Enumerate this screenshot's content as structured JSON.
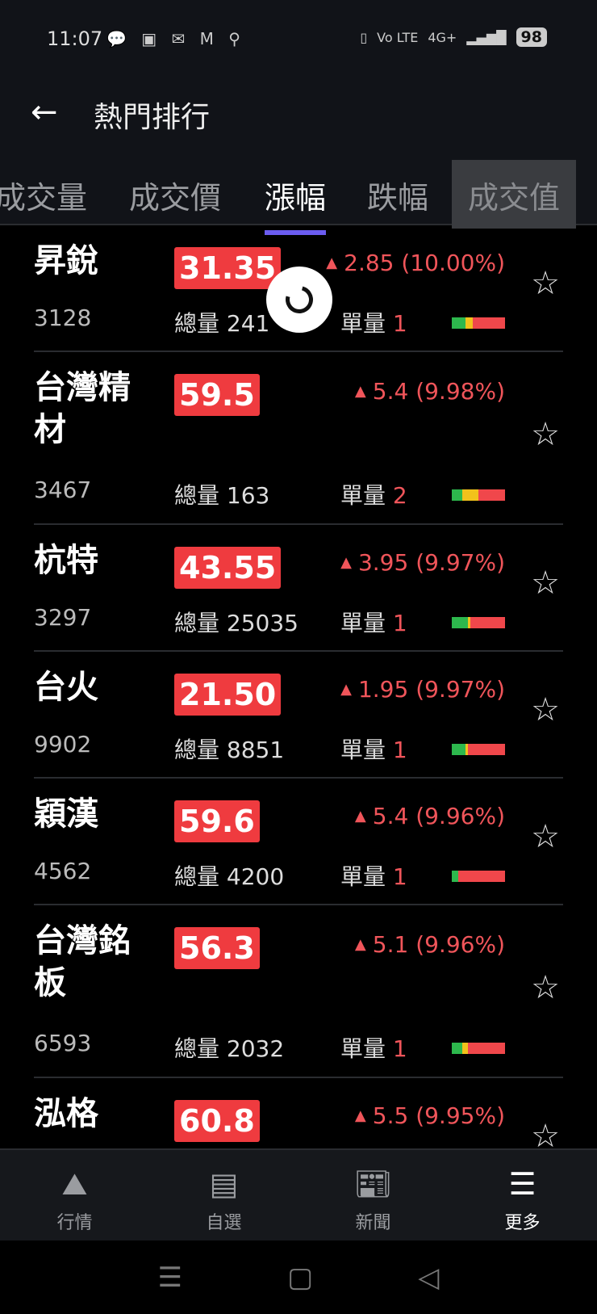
{
  "status": {
    "time": "11:07",
    "icons": [
      "line-icon",
      "app-icon",
      "mail-icon",
      "gmail-icon",
      "keyhole-icon"
    ],
    "network": "4G+",
    "volte": "Vo LTE",
    "battery": "98"
  },
  "header": {
    "title": "熱門排行"
  },
  "tabs": [
    {
      "label": "成交量"
    },
    {
      "label": "成交價"
    },
    {
      "label": "漲幅",
      "active": true
    },
    {
      "label": "跌幅"
    },
    {
      "label": "成交值"
    }
  ],
  "labels": {
    "total_volume": "總量",
    "unit_volume": "單量"
  },
  "stocks": [
    {
      "name": "昇銳",
      "code": "3128",
      "price": "31.35",
      "change": "2.85 (10.00%)",
      "volume": "241",
      "unit": "1",
      "bar": {
        "green": 0.25,
        "yellow": 0.15
      }
    },
    {
      "name": "台灣精材",
      "code": "3467",
      "price": "59.5",
      "change": "5.4 (9.98%)",
      "volume": "163",
      "unit": "2",
      "bar": {
        "green": 0.2,
        "yellow": 0.3
      }
    },
    {
      "name": "杭特",
      "code": "3297",
      "price": "43.55",
      "change": "3.95 (9.97%)",
      "volume": "25035",
      "unit": "1",
      "bar": {
        "green": 0.3,
        "yellow": 0.05
      }
    },
    {
      "name": "台火",
      "code": "9902",
      "price": "21.50",
      "change": "1.95 (9.97%)",
      "volume": "8851",
      "unit": "1",
      "bar": {
        "green": 0.25,
        "yellow": 0.05
      }
    },
    {
      "name": "穎漢",
      "code": "4562",
      "price": "59.6",
      "change": "5.4 (9.96%)",
      "volume": "4200",
      "unit": "1",
      "bar": {
        "green": 0.12,
        "yellow": 0
      }
    },
    {
      "name": "台灣銘板",
      "code": "6593",
      "price": "56.3",
      "change": "5.1 (9.96%)",
      "volume": "2032",
      "unit": "1",
      "bar": {
        "green": 0.2,
        "yellow": 0.1
      }
    },
    {
      "name": "泓格",
      "code": "",
      "price": "60.8",
      "change": "5.5 (9.95%)",
      "volume": "",
      "unit": "",
      "bar": null
    }
  ],
  "bottom_nav": [
    {
      "label": "行情",
      "icon": "chart-icon"
    },
    {
      "label": "自選",
      "icon": "watchlist-icon"
    },
    {
      "label": "新聞",
      "icon": "news-icon"
    },
    {
      "label": "更多",
      "icon": "menu-icon",
      "active": true
    }
  ],
  "colors": {
    "up": "#f0555a",
    "price_bg": "#ef3b3f",
    "tab_indicator": "#6b5cf0"
  }
}
